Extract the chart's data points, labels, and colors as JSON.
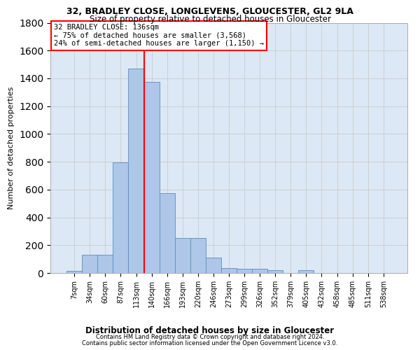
{
  "title1": "32, BRADLEY CLOSE, LONGLEVENS, GLOUCESTER, GL2 9LA",
  "title2": "Size of property relative to detached houses in Gloucester",
  "xlabel": "Distribution of detached houses by size in Gloucester",
  "ylabel": "Number of detached properties",
  "footnote1": "Contains HM Land Registry data © Crown copyright and database right 2024.",
  "footnote2": "Contains public sector information licensed under the Open Government Licence v3.0.",
  "annotation_title": "32 BRADLEY CLOSE: 136sqm",
  "annotation_line1": "← 75% of detached houses are smaller (3,568)",
  "annotation_line2": "24% of semi-detached houses are larger (1,150) →",
  "bar_labels": [
    "7sqm",
    "34sqm",
    "60sqm",
    "87sqm",
    "113sqm",
    "140sqm",
    "166sqm",
    "193sqm",
    "220sqm",
    "246sqm",
    "273sqm",
    "299sqm",
    "326sqm",
    "352sqm",
    "379sqm",
    "405sqm",
    "432sqm",
    "458sqm",
    "485sqm",
    "511sqm",
    "538sqm"
  ],
  "bar_values": [
    15,
    130,
    130,
    795,
    1470,
    1375,
    575,
    250,
    250,
    110,
    35,
    30,
    30,
    20,
    0,
    20,
    0,
    0,
    0,
    0,
    0
  ],
  "bar_color": "#aec6e8",
  "bar_edge_color": "#5a8fc0",
  "red_line_x": 4.5,
  "ylim": [
    0,
    1800
  ],
  "background_color": "#ffffff",
  "grid_color": "#cccccc",
  "ax_bg_color": "#dce8f5"
}
